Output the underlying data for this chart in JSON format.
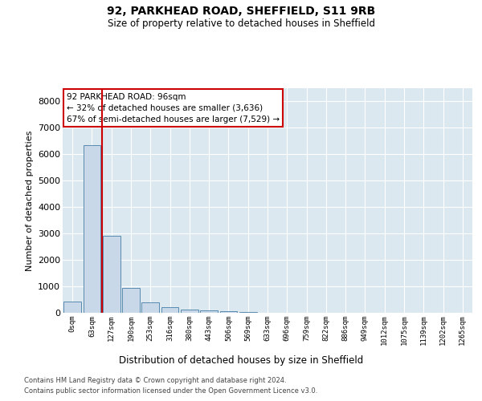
{
  "title_line1": "92, PARKHEAD ROAD, SHEFFIELD, S11 9RB",
  "title_line2": "Size of property relative to detached houses in Sheffield",
  "xlabel": "Distribution of detached houses by size in Sheffield",
  "ylabel": "Number of detached properties",
  "bar_labels": [
    "0sqm",
    "63sqm",
    "127sqm",
    "190sqm",
    "253sqm",
    "316sqm",
    "380sqm",
    "443sqm",
    "506sqm",
    "569sqm",
    "633sqm",
    "696sqm",
    "759sqm",
    "822sqm",
    "886sqm",
    "949sqm",
    "1012sqm",
    "1075sqm",
    "1139sqm",
    "1202sqm",
    "1265sqm"
  ],
  "bar_values": [
    430,
    6350,
    2900,
    950,
    400,
    200,
    130,
    80,
    50,
    20,
    0,
    0,
    0,
    0,
    0,
    0,
    0,
    0,
    0,
    0,
    0
  ],
  "bar_color": "#c8d8e8",
  "bar_edge_color": "#5a8ab0",
  "vline_color": "#cc0000",
  "vline_x": 1.5,
  "annotation_text": "92 PARKHEAD ROAD: 96sqm\n← 32% of detached houses are smaller (3,636)\n67% of semi-detached houses are larger (7,529) →",
  "annotation_box_color": "#ffffff",
  "annotation_box_edge": "#cc0000",
  "ylim": [
    0,
    8500
  ],
  "yticks": [
    0,
    1000,
    2000,
    3000,
    4000,
    5000,
    6000,
    7000,
    8000
  ],
  "footer_line1": "Contains HM Land Registry data © Crown copyright and database right 2024.",
  "footer_line2": "Contains public sector information licensed under the Open Government Licence v3.0.",
  "plot_bg_color": "#dce8f0",
  "fig_bg_color": "#ffffff",
  "grid_color": "#ffffff"
}
